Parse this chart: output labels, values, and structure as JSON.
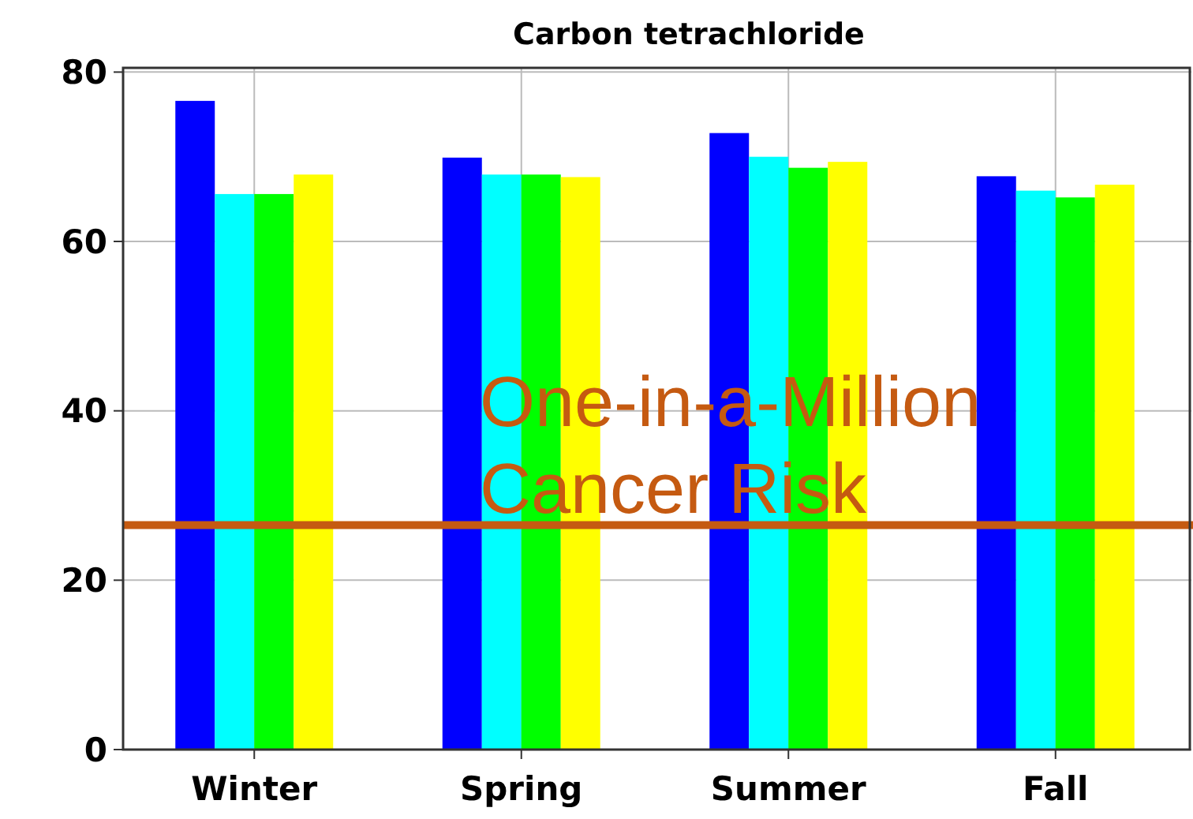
{
  "chart_data": {
    "type": "bar",
    "title": "Carbon tetrachloride",
    "categories": [
      "Winter",
      "Spring",
      "Summer",
      "Fall"
    ],
    "series": [
      {
        "color": "#0000ff",
        "values": [
          76.6,
          69.9,
          72.8,
          67.7
        ]
      },
      {
        "color": "#00ffff",
        "values": [
          65.6,
          67.9,
          70.0,
          66.0
        ]
      },
      {
        "color": "#00ff00",
        "values": [
          65.6,
          67.9,
          68.7,
          65.2
        ]
      },
      {
        "color": "#ffff00",
        "values": [
          67.9,
          67.6,
          69.4,
          66.7
        ]
      }
    ],
    "ylim": [
      0,
      80.5
    ],
    "yticks": [
      0,
      20,
      40,
      60,
      80
    ],
    "grid": true,
    "ref_lines": [
      {
        "axis": "y",
        "value": 26.5,
        "label": "One-in-a-Million Cancer Risk",
        "color": "#c55a11"
      }
    ]
  }
}
